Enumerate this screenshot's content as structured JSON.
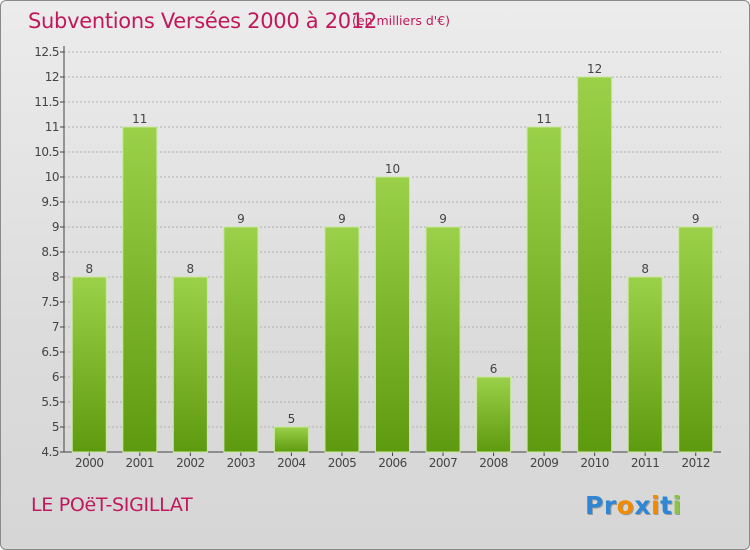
{
  "header": {
    "title": "Subventions Versées 2000 à 2012",
    "unit_note": "(en milliers d'€)"
  },
  "footer": {
    "place": "LE POëT-SIGILLAT",
    "logo_letters": [
      "P",
      "r",
      "o",
      "x",
      "i",
      "t",
      "i"
    ],
    "logo_colors": [
      "#2e86d4",
      "#2e86d4",
      "#f08a00",
      "#2e86d4",
      "#f08a00",
      "#2e86d4",
      "#8bc34a"
    ]
  },
  "colors": {
    "title": "#c2185b",
    "bar_top": "#9bd14a",
    "bar_bottom": "#5e9a0f",
    "grid": "#b0b0b0"
  },
  "chart_data": {
    "type": "bar",
    "categories": [
      "2000",
      "2001",
      "2002",
      "2003",
      "2004",
      "2005",
      "2006",
      "2007",
      "2008",
      "2009",
      "2010",
      "2011",
      "2012"
    ],
    "values": [
      8,
      11,
      8,
      9,
      5,
      9,
      10,
      9,
      6,
      11,
      12,
      8,
      9
    ],
    "data_labels": [
      "8",
      "11",
      "8",
      "9",
      "5",
      "9",
      "10",
      "9",
      "6",
      "11",
      "12",
      "8",
      "9"
    ],
    "y_ticks": [
      "4.5",
      "5",
      "5.5",
      "6",
      "6.5",
      "7",
      "7.5",
      "8",
      "8.5",
      "9",
      "9.5",
      "10",
      "10.5",
      "11",
      "11.5",
      "12",
      "12.5"
    ],
    "ylim": [
      4.5,
      12.5
    ],
    "title": "Subventions Versées 2000 à 2012",
    "xlabel": "",
    "ylabel": "",
    "grid": true
  }
}
